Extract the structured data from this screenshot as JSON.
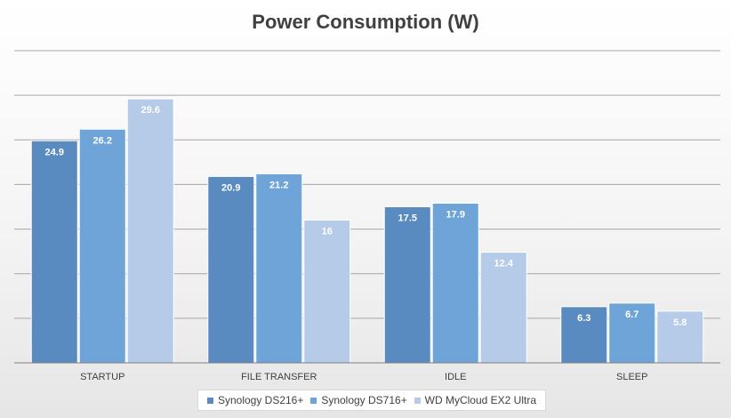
{
  "chart_data": {
    "type": "bar",
    "title": "Power Consumption (W)",
    "categories": [
      "STARTUP",
      "FILE TRANSFER",
      "IDLE",
      "SLEEP"
    ],
    "series": [
      {
        "name": "Synology DS216+",
        "color": "#5a8bc0",
        "values": [
          24.9,
          20.9,
          17.5,
          6.3
        ]
      },
      {
        "name": "Synology DS716+",
        "color": "#6ea4d8",
        "values": [
          26.2,
          21.2,
          17.9,
          6.7
        ]
      },
      {
        "name": "WD MyCloud EX2 Ultra",
        "color": "#b5cbe8",
        "values": [
          29.6,
          16,
          12.4,
          5.8
        ]
      }
    ],
    "ylim": [
      0,
      35
    ],
    "grid": true,
    "legend": "bottom"
  }
}
